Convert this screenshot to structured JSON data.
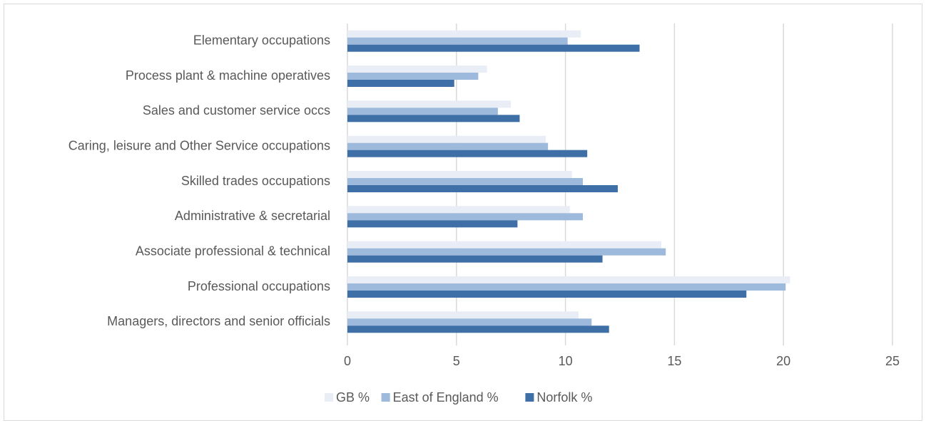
{
  "chart_data": {
    "type": "bar",
    "orientation": "horizontal",
    "categories": [
      "Managers, directors and senior officials",
      "Professional occupations",
      "Associate professional & technical",
      "Administrative & secretarial",
      "Skilled trades occupations",
      "Caring, leisure and Other Service occupations",
      "Sales and customer service occs",
      "Process plant & machine operatives",
      "Elementary occupations"
    ],
    "series": [
      {
        "name": "GB %",
        "color": "#e9edf6",
        "values": [
          10.6,
          20.3,
          14.4,
          10.2,
          10.3,
          9.1,
          7.5,
          6.4,
          10.7
        ]
      },
      {
        "name": "East of England %",
        "color": "#9db9dc",
        "values": [
          11.2,
          20.1,
          14.6,
          10.8,
          10.8,
          9.2,
          6.9,
          6.0,
          10.1
        ]
      },
      {
        "name": "Norfolk %",
        "color": "#3e6fa6",
        "values": [
          12.0,
          18.3,
          11.7,
          7.8,
          12.4,
          11.0,
          7.9,
          4.9,
          13.4
        ]
      }
    ],
    "xlim": [
      0,
      25
    ],
    "xticks": [
      0,
      5,
      10,
      15,
      20,
      25
    ],
    "grid": true,
    "legend": "bottom"
  }
}
